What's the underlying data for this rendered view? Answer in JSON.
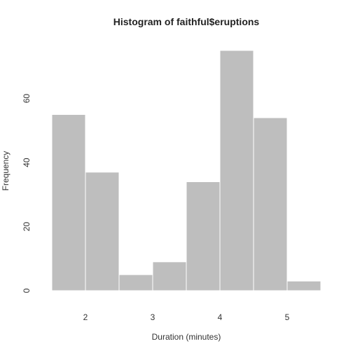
{
  "chart_data": {
    "type": "bar",
    "title": "Histogram of faithful$eruptions",
    "xlabel": "Duration (minutes)",
    "ylabel": "Frequency",
    "bins": [
      {
        "x0": 1.5,
        "x1": 2.0,
        "count": 55
      },
      {
        "x0": 2.0,
        "x1": 2.5,
        "count": 37
      },
      {
        "x0": 2.5,
        "x1": 3.0,
        "count": 5
      },
      {
        "x0": 3.0,
        "x1": 3.5,
        "count": 9
      },
      {
        "x0": 3.5,
        "x1": 4.0,
        "count": 34
      },
      {
        "x0": 4.0,
        "x1": 4.5,
        "count": 75
      },
      {
        "x0": 4.5,
        "x1": 5.0,
        "count": 54
      },
      {
        "x0": 5.0,
        "x1": 5.5,
        "count": 3
      }
    ],
    "xticks": [
      2,
      3,
      4,
      5
    ],
    "yticks": [
      0,
      20,
      40,
      60
    ],
    "xlim": [
      1.5,
      5.5
    ],
    "ylim": [
      0,
      75
    ],
    "bar_color": "#bebebe",
    "bar_border_color": "#ffffff",
    "background": "#ffffff",
    "grid": false,
    "legend": "none"
  }
}
